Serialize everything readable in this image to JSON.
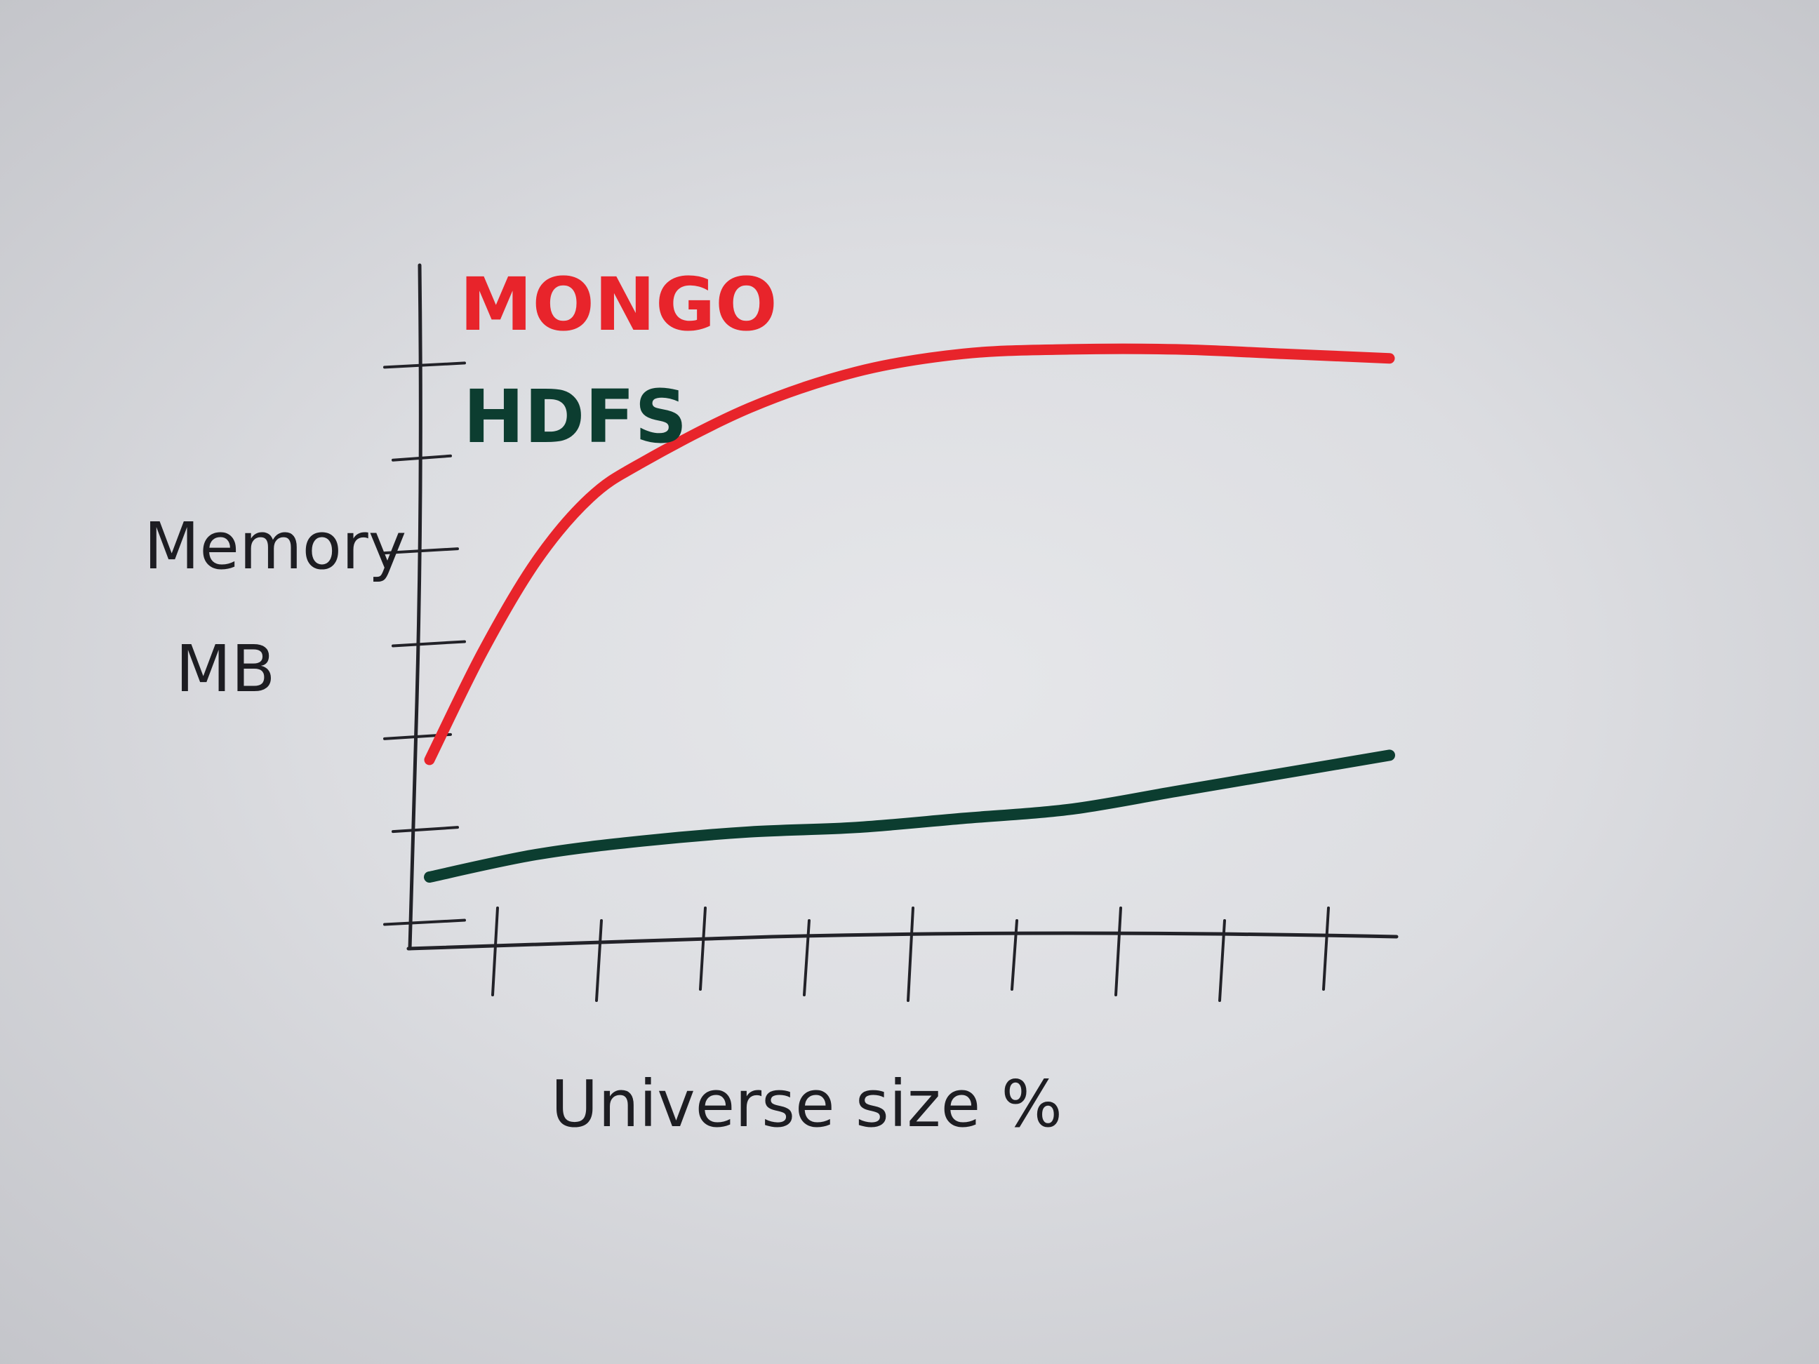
{
  "chart_data": {
    "type": "line",
    "xlabel": "Universe size %",
    "ylabel_line1": "Memory",
    "ylabel_line2": "MB",
    "legend_position": "top-left",
    "grid": false,
    "x_tick_count": 9,
    "y_tick_count": 7,
    "xlim": [
      0,
      9
    ],
    "ylim": [
      0,
      7
    ],
    "series": [
      {
        "name": "MONGO",
        "color": "#e8242b",
        "x": [
          0,
          0.5,
          1,
          1.5,
          2,
          3,
          4,
          5,
          6,
          7,
          8,
          9
        ],
        "y": [
          2.0,
          3.2,
          4.2,
          4.9,
          5.3,
          5.9,
          6.3,
          6.5,
          6.55,
          6.55,
          6.5,
          6.45
        ]
      },
      {
        "name": "HDFS",
        "color": "#0c3d30",
        "x": [
          0,
          1,
          2,
          3,
          4,
          5,
          6,
          7,
          8,
          9
        ],
        "y": [
          0.7,
          0.95,
          1.1,
          1.2,
          1.25,
          1.35,
          1.45,
          1.65,
          1.85,
          2.05
        ]
      }
    ]
  }
}
